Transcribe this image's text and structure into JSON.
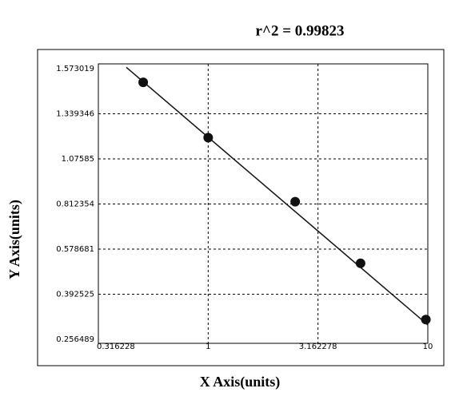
{
  "chart_data": {
    "type": "scatter",
    "title": "r^2 = 0.99823",
    "x_label": "X Axis(units)",
    "y_label": "Y Axis(units)",
    "x_scale": "log",
    "grid": true,
    "xlim": [
      0.316228,
      10
    ],
    "ylim": [
      0.256489,
      1.573019
    ],
    "xticks": [
      0.316228,
      1,
      3.162278,
      10
    ],
    "yticks": [
      0.256489,
      0.392525,
      0.578681,
      0.812354,
      1.07585,
      1.339346,
      1.573019
    ],
    "series": [
      {
        "color": "#111111",
        "x": [
          0.506,
          1,
          2.49,
          4.94,
          9.8
        ],
        "values": [
          1.502,
          1.2,
          0.826,
          0.52,
          0.316
        ]
      }
    ],
    "fit_line": {
      "color": "#111111",
      "x": [
        0.424,
        10
      ],
      "values": [
        1.58,
        0.3
      ]
    }
  }
}
